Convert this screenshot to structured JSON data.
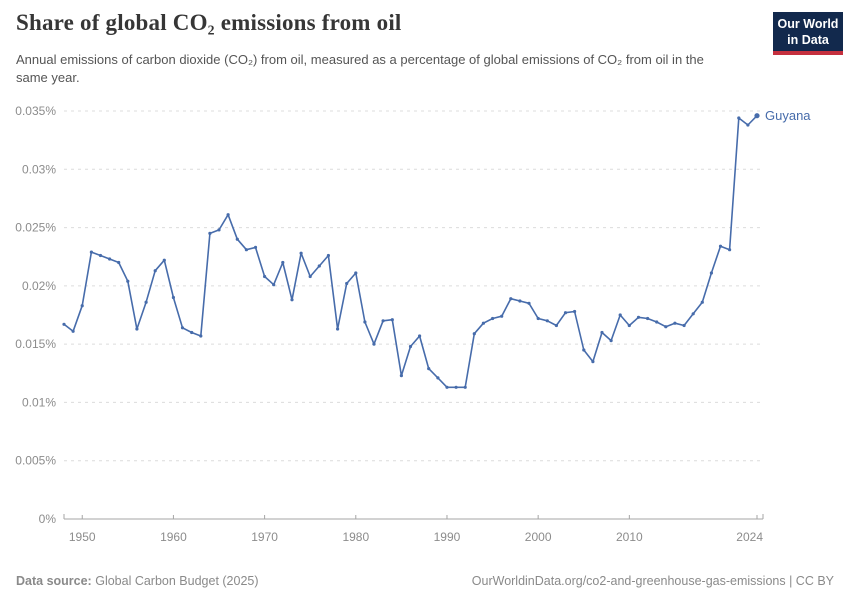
{
  "header": {
    "title": "Share of global CO₂ emissions from oil",
    "subtitle": "Annual emissions of carbon dioxide (CO₂) from oil, measured as a percentage of global emissions of CO₂ from oil in the same year.",
    "logo": {
      "line1": "Our World",
      "line2": "in Data",
      "bg_color": "#12294d",
      "bar_color": "#c5303e"
    }
  },
  "chart_data": {
    "type": "line",
    "title": "Share of global CO₂ emissions from oil",
    "x_range": [
      1948,
      2024
    ],
    "y_range": [
      0,
      0.035
    ],
    "grid": true,
    "y_ticks": [
      0,
      0.005,
      0.01,
      0.015,
      0.02,
      0.025,
      0.03,
      0.035
    ],
    "y_tick_labels": [
      "0%",
      "0.005%",
      "0.01%",
      "0.015%",
      "0.02%",
      "0.025%",
      "0.03%",
      "0.035%"
    ],
    "x_ticks": [
      1950,
      1960,
      1970,
      1980,
      1990,
      2000,
      2010,
      2024
    ],
    "legend_position": "end-of-line-label",
    "series": [
      {
        "name": "Guyana",
        "color": "#476cab",
        "start_year": 1948,
        "values": [
          0.0167,
          0.0161,
          0.0183,
          0.0229,
          0.0226,
          0.0223,
          0.022,
          0.0204,
          0.0163,
          0.0186,
          0.0213,
          0.0222,
          0.019,
          0.0164,
          0.016,
          0.0157,
          0.0245,
          0.0248,
          0.0261,
          0.024,
          0.0231,
          0.0233,
          0.0208,
          0.0201,
          0.022,
          0.0188,
          0.0228,
          0.0208,
          0.0217,
          0.0226,
          0.0163,
          0.0202,
          0.0211,
          0.0169,
          0.015,
          0.017,
          0.0171,
          0.0123,
          0.0148,
          0.0157,
          0.0129,
          0.0121,
          0.0113,
          0.0113,
          0.0113,
          0.0159,
          0.0168,
          0.0172,
          0.0174,
          0.0189,
          0.0187,
          0.0185,
          0.0172,
          0.017,
          0.0166,
          0.0177,
          0.0178,
          0.0145,
          0.0135,
          0.016,
          0.0153,
          0.0175,
          0.0166,
          0.0173,
          0.0172,
          0.0169,
          0.0165,
          0.0168,
          0.0166,
          0.0176,
          0.0186,
          0.0211,
          0.0234,
          0.0231,
          0.0344,
          0.0338,
          0.0346
        ]
      }
    ],
    "colors": {
      "line": "#476cab",
      "grid": "#dcdcdc",
      "axis": "#a5a5a5",
      "tick_label": "#8c8c8c"
    }
  },
  "footer": {
    "source_label": "Data source:",
    "source_value": "Global Carbon Budget (2025)",
    "link": "OurWorldinData.org/co2-and-greenhouse-gas-emissions | CC BY"
  }
}
